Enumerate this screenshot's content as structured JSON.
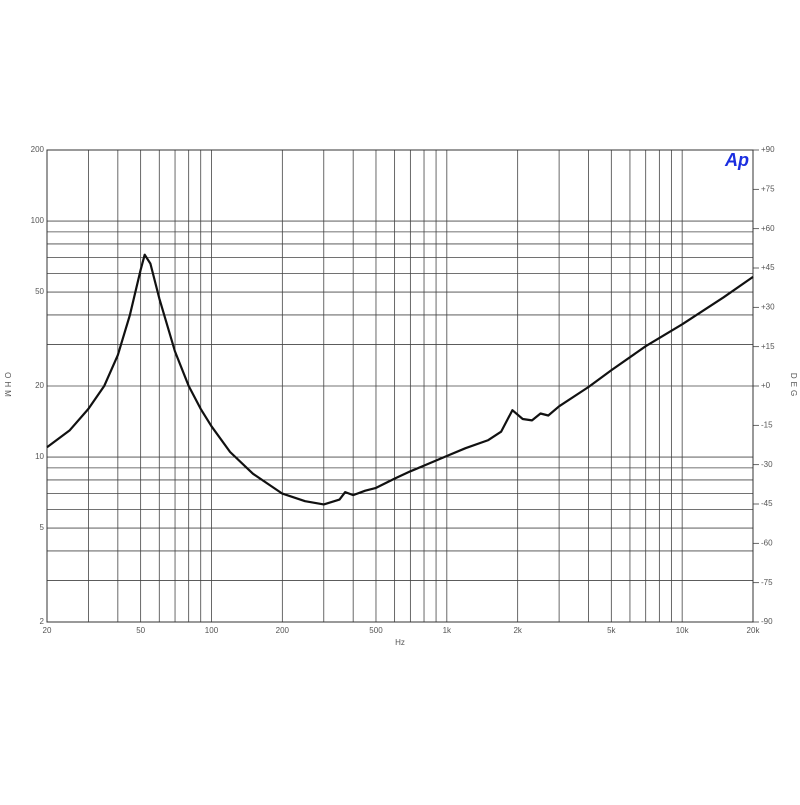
{
  "chart_data": {
    "type": "line",
    "logo": "Ap",
    "y_label": "OHM",
    "y2_label": "DEG",
    "x_label": "Hz",
    "x": [
      20,
      25,
      30,
      35,
      40,
      45,
      50,
      52,
      55,
      60,
      70,
      80,
      90,
      100,
      120,
      150,
      200,
      250,
      300,
      350,
      370,
      400,
      450,
      500,
      600,
      700,
      800,
      1000,
      1200,
      1500,
      1700,
      1900,
      2100,
      2300,
      2500,
      2700,
      3000,
      4000,
      5000,
      7000,
      10000,
      15000,
      20000
    ],
    "values": [
      11,
      13,
      16,
      20,
      27,
      40,
      62,
      72,
      66,
      47,
      28,
      20,
      16,
      13.5,
      10.5,
      8.5,
      7,
      6.5,
      6.3,
      6.6,
      7.1,
      6.9,
      7.2,
      7.4,
      8.1,
      8.7,
      9.2,
      10.1,
      10.9,
      11.8,
      12.8,
      15.8,
      14.5,
      14.3,
      15.3,
      15,
      16.4,
      19.8,
      23.3,
      29.5,
      36.5,
      47.5,
      58
    ],
    "color": "#111111",
    "xlim": [
      20,
      20000
    ],
    "log_x": true,
    "xticks": [
      20,
      50,
      100,
      200,
      500,
      {
        "value": 1000,
        "label": "1k"
      },
      {
        "value": 2000,
        "label": "2k"
      },
      {
        "value": 5000,
        "label": "5k"
      },
      {
        "value": 10000,
        "label": "10k"
      },
      {
        "value": 20000,
        "label": "20k"
      }
    ],
    "xgrid": [
      30,
      40,
      60,
      70,
      80,
      90,
      300,
      400,
      600,
      700,
      800,
      900,
      3000,
      4000,
      6000,
      7000,
      8000,
      9000
    ],
    "ylim": [
      2,
      200
    ],
    "log_y": true,
    "yticks": [
      2,
      5,
      10,
      20,
      50,
      100,
      200
    ],
    "ygrid": [
      3,
      4,
      6,
      7,
      8,
      9,
      30,
      40,
      60,
      70,
      80,
      90
    ],
    "y2lim": [
      -90,
      90
    ],
    "y2ticks": [
      {
        "value": 90,
        "label": "+90"
      },
      {
        "value": 75,
        "label": "+75"
      },
      {
        "value": 60,
        "label": "+60"
      },
      {
        "value": 45,
        "label": "+45"
      },
      {
        "value": 30,
        "label": "+30"
      },
      {
        "value": 15,
        "label": "+15"
      },
      {
        "value": 0,
        "label": "+0"
      },
      -15,
      -30,
      -45,
      -60,
      -75,
      -90
    ],
    "grid": true
  }
}
